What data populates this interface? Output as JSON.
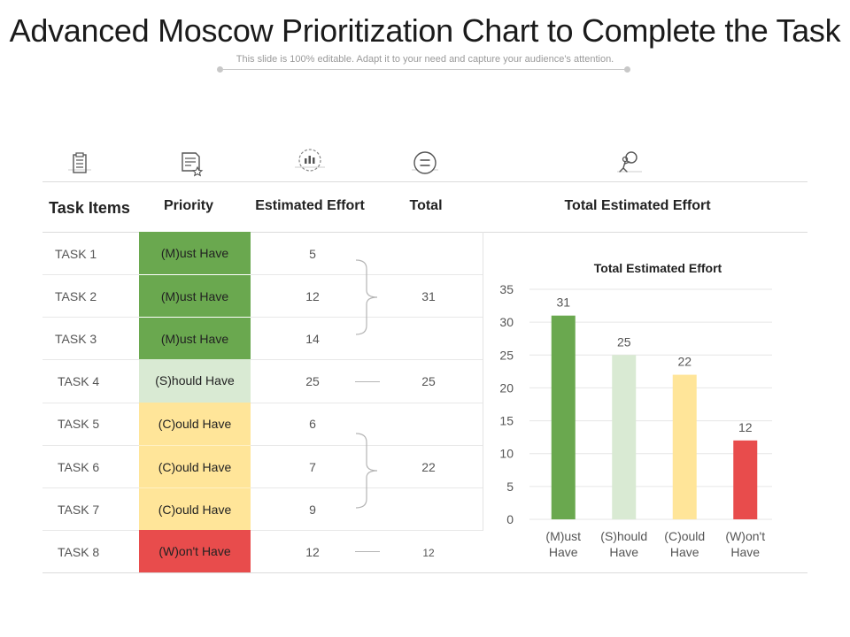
{
  "header": {
    "title": "Advanced Moscow Prioritization Chart to Complete the Task",
    "subtitle": "This slide is 100% editable. Adapt it to your need and capture your audience's attention."
  },
  "icons": [
    "clipboard-icon",
    "document-star-icon",
    "chart-circle-icon",
    "equals-icon",
    "person-ball-icon"
  ],
  "table": {
    "headers": {
      "task": "Task Items",
      "priority": "Priority",
      "effort": "Estimated Effort",
      "total": "Total",
      "chart": "Total Estimated Effort"
    },
    "rows": [
      {
        "task": "TASK 1",
        "priority": "(M)ust Have",
        "effort": "5"
      },
      {
        "task": "TASK 2",
        "priority": "(M)ust Have",
        "effort": "12"
      },
      {
        "task": "TASK 3",
        "priority": "(M)ust Have",
        "effort": "14"
      },
      {
        "task": "TASK 4",
        "priority": "(S)hould Have",
        "effort": "25"
      },
      {
        "task": "TASK 5",
        "priority": "(C)ould Have",
        "effort": "6"
      },
      {
        "task": "TASK 6",
        "priority": "(C)ould Have",
        "effort": "7"
      },
      {
        "task": "TASK 7",
        "priority": "(C)ould Have",
        "effort": "9"
      },
      {
        "task": "TASK 8",
        "priority": "(W)on't Have",
        "effort": "12"
      }
    ],
    "totals": {
      "must": "31",
      "should": "25",
      "could": "22",
      "wont": "12"
    }
  },
  "colors": {
    "must": "#6aa84f",
    "should": "#d9ead3",
    "could": "#ffe599",
    "wont": "#e84c4c"
  },
  "chart_data": {
    "type": "bar",
    "title": "Total Estimated Effort",
    "categories": [
      "(M)ust Have",
      "(S)hould Have",
      "(C)ould Have",
      "(W)on't Have"
    ],
    "values": [
      31,
      25,
      22,
      12
    ],
    "colors": [
      "#6aa84f",
      "#d9ead3",
      "#ffe599",
      "#e84c4c"
    ],
    "ylim": [
      0,
      35
    ],
    "yticks": [
      0,
      5,
      10,
      15,
      20,
      25,
      30,
      35
    ],
    "grid": true,
    "xlabel": "",
    "ylabel": ""
  }
}
